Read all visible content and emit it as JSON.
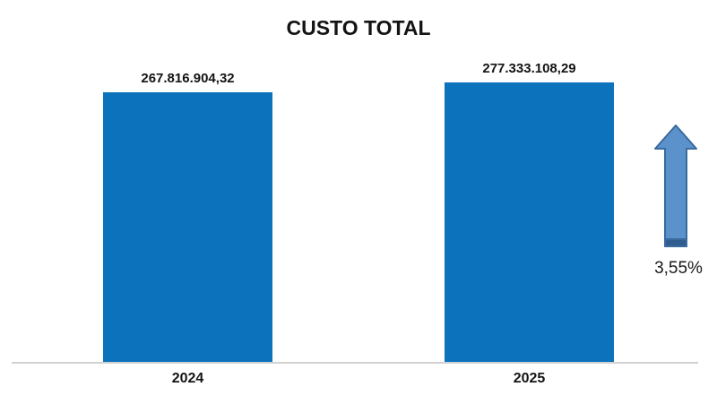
{
  "title": "CUSTO TOTAL",
  "annotation": {
    "percent_change": "3,55%"
  },
  "arrow": {
    "fill": "#5b92cb",
    "band": "#2f5d8f",
    "border": "#3a6a9e"
  },
  "chart_data": {
    "type": "bar",
    "title": "CUSTO TOTAL",
    "categories": [
      "2024",
      "2025"
    ],
    "values": [
      267816904.32,
      277333108.29
    ],
    "value_labels": [
      "267.816.904,32",
      "277.333.108,29"
    ],
    "xlabel": "",
    "ylabel": "",
    "ylim": [
      0,
      300000000
    ],
    "grid": false,
    "legend": false,
    "bar_color": "#0d72bc",
    "axis_line_color": "#d2d2d2",
    "annotations": [
      {
        "text": "3,55%",
        "icon": "up-arrow",
        "position": "right"
      }
    ]
  }
}
